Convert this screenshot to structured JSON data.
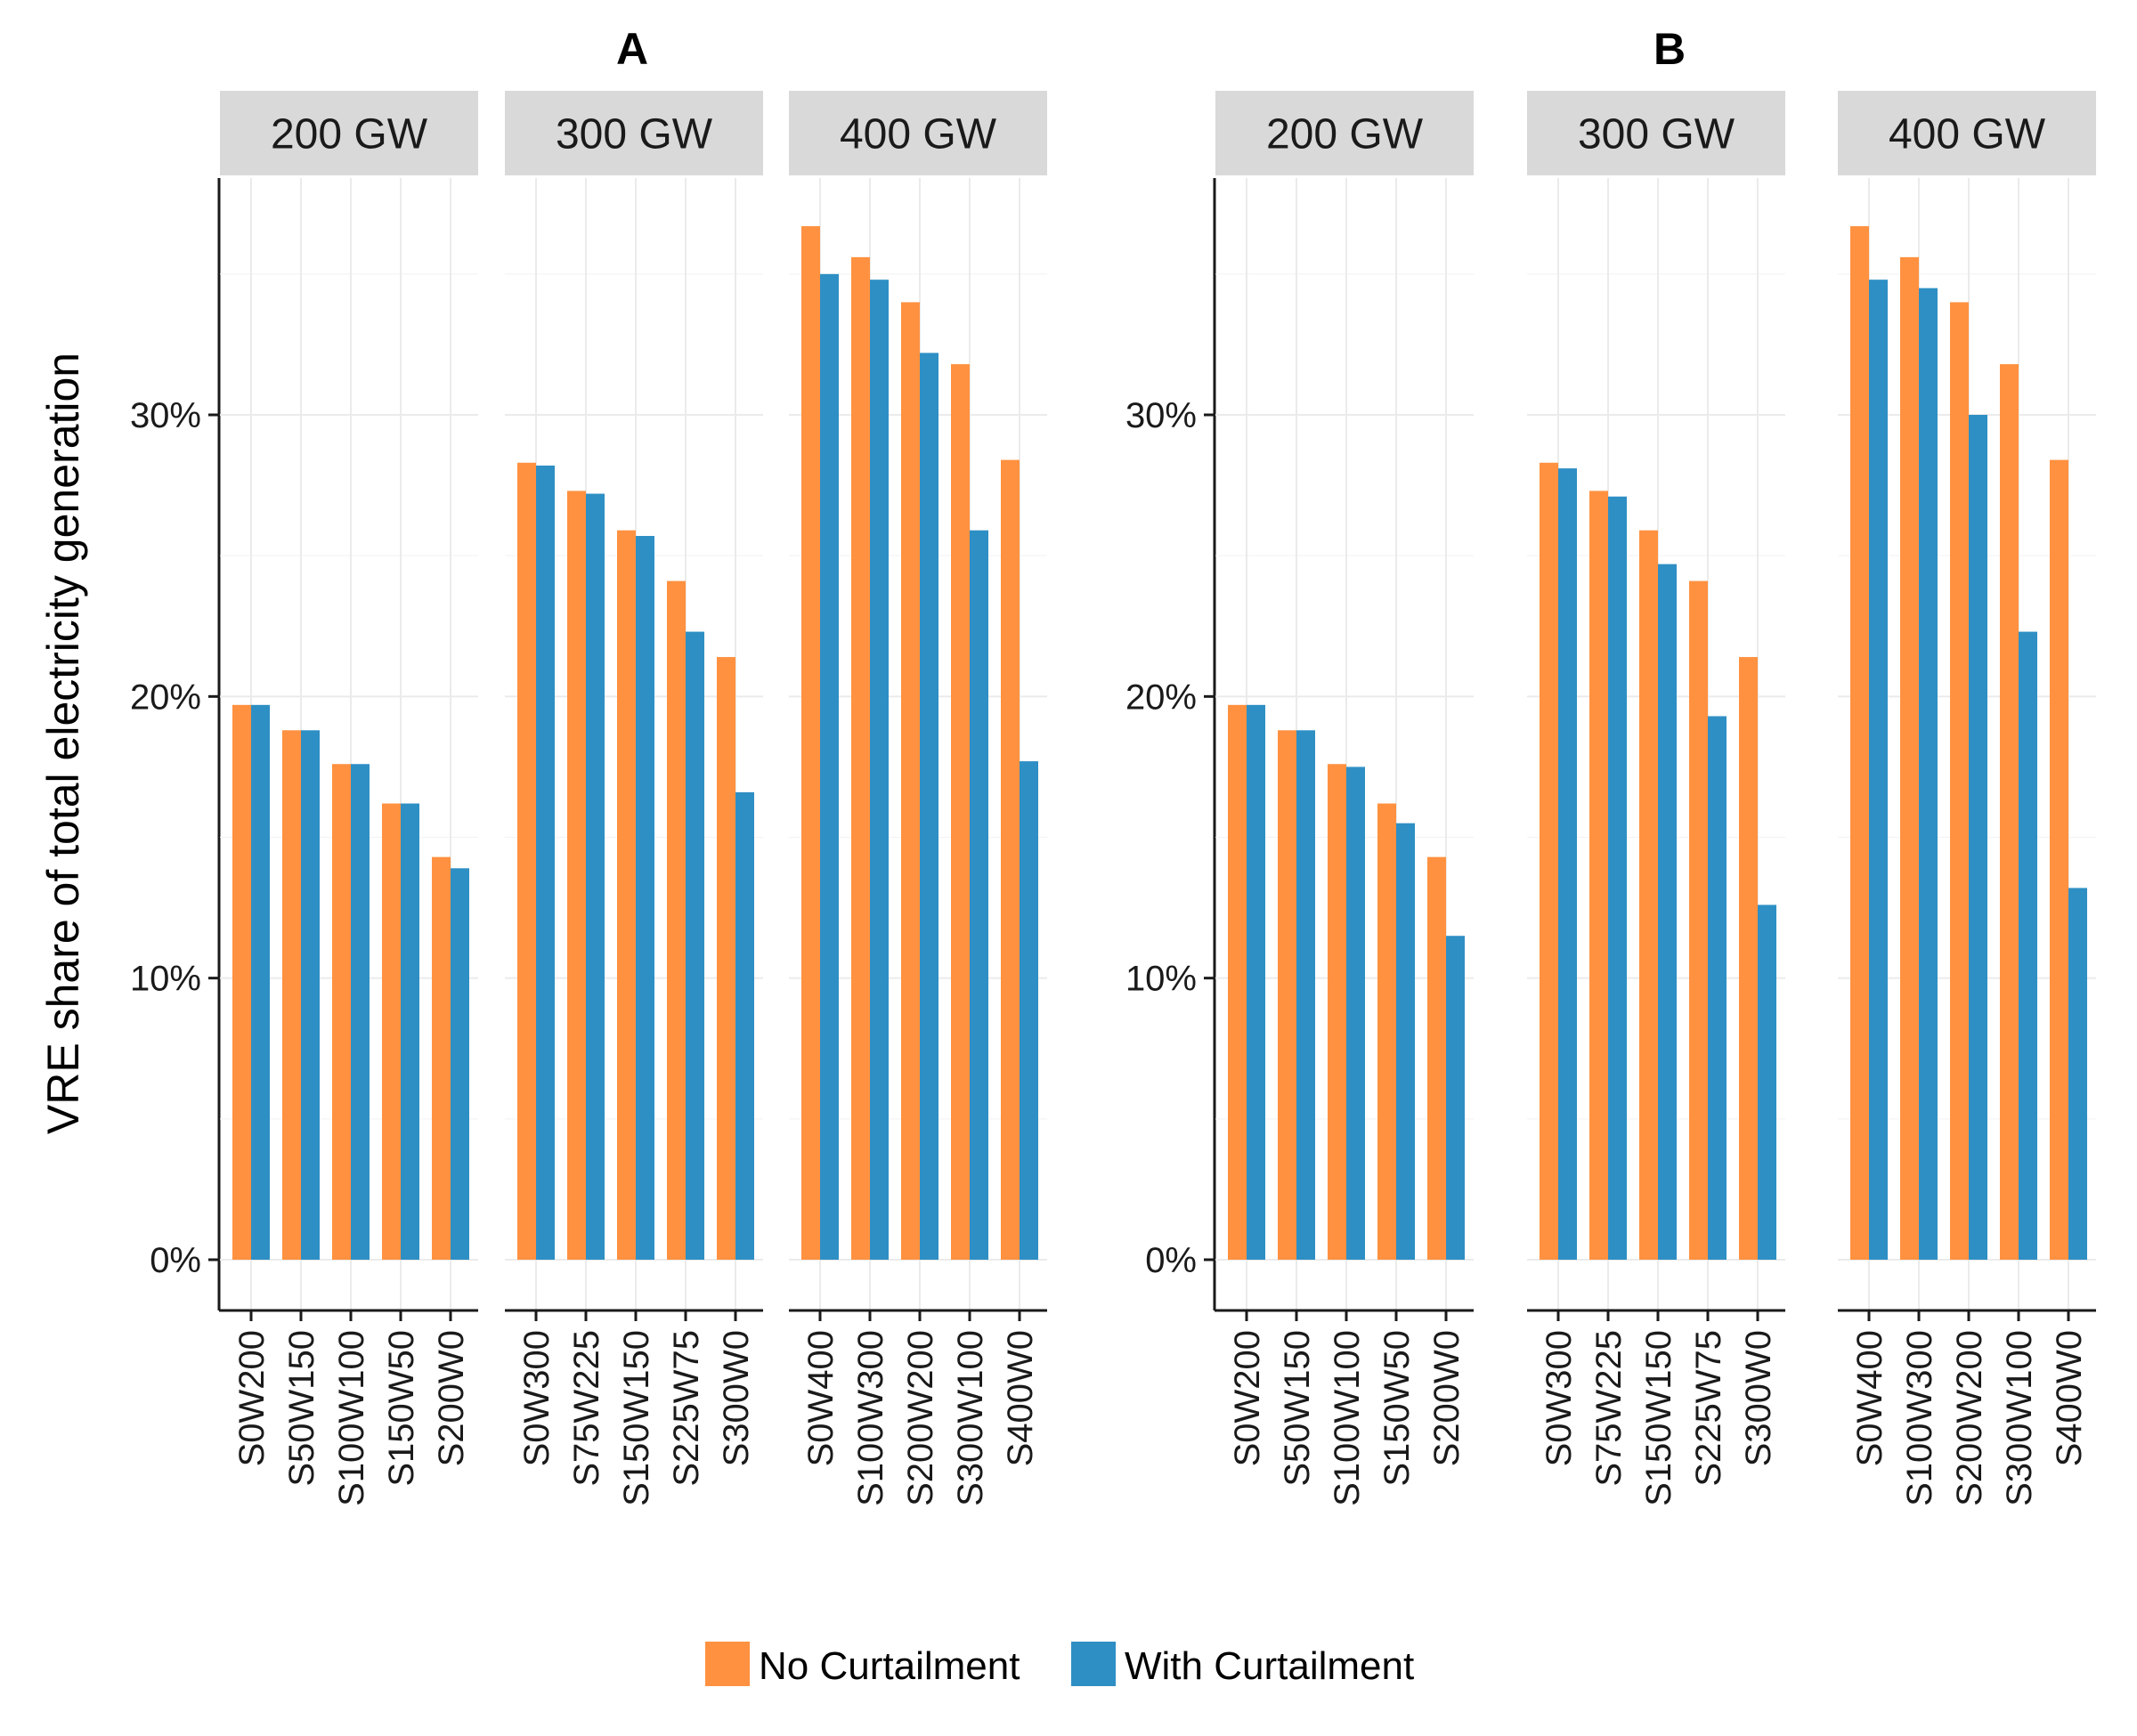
{
  "chart_data": {
    "type": "bar",
    "ylabel": "VRE share of total electricity generation",
    "yticks": [
      "0%",
      "10%",
      "20%",
      "30%"
    ],
    "ylim": [
      0,
      0.38
    ],
    "colors": {
      "no_curtailment": "#FF9140",
      "with_curtailment": "#2E8FC4"
    },
    "legend": {
      "position": "bottom",
      "items": [
        {
          "key": "no_curtailment",
          "label": "No Curtailment"
        },
        {
          "key": "with_curtailment",
          "label": "With Curtailment"
        }
      ]
    },
    "panels": [
      {
        "title": "A",
        "facets": [
          {
            "label": "200 GW",
            "categories": [
              "S0W200",
              "S50W150",
              "S100W100",
              "S150W50",
              "S200W0"
            ],
            "no_curtailment": [
              0.197,
              0.188,
              0.176,
              0.162,
              0.143
            ],
            "with_curtailment": [
              0.197,
              0.188,
              0.176,
              0.162,
              0.139
            ]
          },
          {
            "label": "300 GW",
            "categories": [
              "S0W300",
              "S75W225",
              "S150W150",
              "S225W75",
              "S300W0"
            ],
            "no_curtailment": [
              0.283,
              0.273,
              0.259,
              0.241,
              0.214
            ],
            "with_curtailment": [
              0.282,
              0.272,
              0.257,
              0.223,
              0.166
            ]
          },
          {
            "label": "400 GW",
            "categories": [
              "S0W400",
              "S100W300",
              "S200W200",
              "S300W100",
              "S400W0"
            ],
            "no_curtailment": [
              0.367,
              0.356,
              0.34,
              0.318,
              0.284
            ],
            "with_curtailment": [
              0.35,
              0.348,
              0.322,
              0.259,
              0.177
            ]
          }
        ]
      },
      {
        "title": "B",
        "facets": [
          {
            "label": "200 GW",
            "categories": [
              "S0W200",
              "S50W150",
              "S100W100",
              "S150W50",
              "S200W0"
            ],
            "no_curtailment": [
              0.197,
              0.188,
              0.176,
              0.162,
              0.143
            ],
            "with_curtailment": [
              0.197,
              0.188,
              0.175,
              0.155,
              0.115
            ]
          },
          {
            "label": "300 GW",
            "categories": [
              "S0W300",
              "S75W225",
              "S150W150",
              "S225W75",
              "S300W0"
            ],
            "no_curtailment": [
              0.283,
              0.273,
              0.259,
              0.241,
              0.214
            ],
            "with_curtailment": [
              0.281,
              0.271,
              0.247,
              0.193,
              0.126
            ]
          },
          {
            "label": "400 GW",
            "categories": [
              "S0W400",
              "S100W300",
              "S200W200",
              "S300W100",
              "S400W0"
            ],
            "no_curtailment": [
              0.367,
              0.356,
              0.34,
              0.318,
              0.284
            ],
            "with_curtailment": [
              0.348,
              0.345,
              0.3,
              0.223,
              0.132
            ]
          }
        ]
      }
    ]
  }
}
